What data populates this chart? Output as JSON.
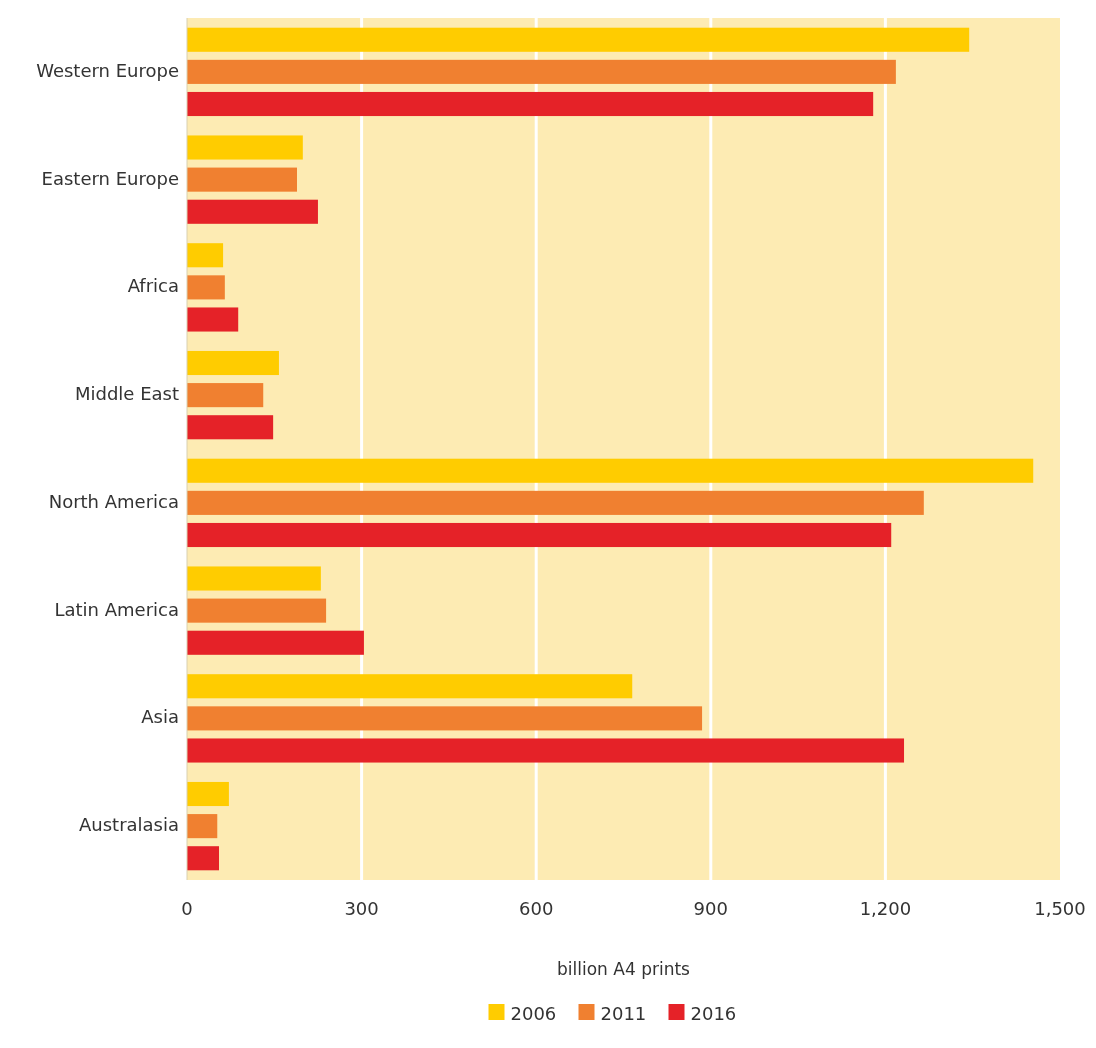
{
  "chart_data": {
    "type": "bar",
    "orientation": "horizontal",
    "xlabel": "billion A4 prints",
    "categories": [
      "Western Europe",
      "Eastern Europe",
      "Africa",
      "Middle East",
      "North America",
      "Latin America",
      "Asia",
      "Australasia"
    ],
    "series": [
      {
        "name": "2006",
        "color": "#ffcc00",
        "values": [
          1344,
          199,
          62,
          158,
          1454,
          230,
          765,
          72
        ]
      },
      {
        "name": "2011",
        "color": "#f08030",
        "values": [
          1218,
          189,
          65,
          131,
          1266,
          239,
          885,
          52
        ]
      },
      {
        "name": "2016",
        "color": "#e52228",
        "values": [
          1179,
          225,
          88,
          148,
          1210,
          304,
          1232,
          55
        ]
      }
    ],
    "xlim": [
      0,
      1500
    ],
    "xticks": [
      0,
      300,
      600,
      900,
      {
        "value": 1200,
        "label": "1,200"
      },
      {
        "value": 1500,
        "label": "1,500"
      }
    ],
    "grid": "x",
    "legend": "bottom"
  }
}
